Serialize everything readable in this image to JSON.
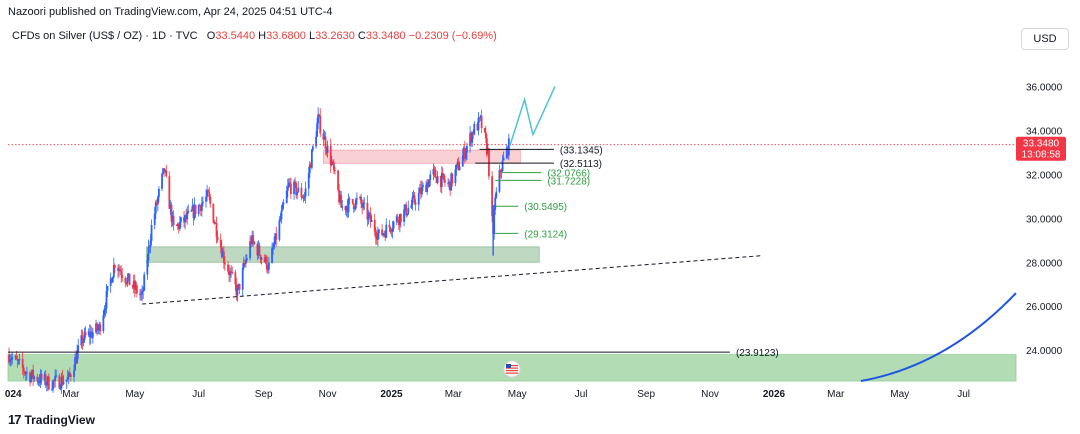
{
  "header": {
    "published": "Nazoori published on TradingView.com, Apr 24, 2025 04:51 UTC-4"
  },
  "symbol": {
    "name": "CFDs on Silver (US$ / OZ) · 1D · TVC",
    "o_label": "O",
    "o_value": "33.5440",
    "h_label": "H",
    "h_value": "33.6800",
    "l_label": "L",
    "l_value": "33.2630",
    "c_label": "C",
    "c_value": "33.3480",
    "change": "−0.2309 (−0.69%)"
  },
  "currency_button": "USD",
  "brand": {
    "logo": "17",
    "name": "TradingView"
  },
  "colors": {
    "up": "#2962ff",
    "down": "#f23645",
    "price_line": "#f23645",
    "green_zone": "#a5d6a7",
    "pink_zone": "#f8c8cc",
    "projection": "#4fc3d6",
    "curve": "#1e54e6",
    "label_green": "#2e9e43"
  },
  "chart_data": {
    "type": "candlestick",
    "y_axis": {
      "ticks": [
        "36.0000",
        "34.0000",
        "32.0000",
        "30.0000",
        "28.0000",
        "26.0000",
        "24.0000"
      ],
      "ylim": [
        22.6,
        37.2
      ]
    },
    "x_axis": {
      "ticks": [
        "024",
        "Mar",
        "May",
        "Jul",
        "Sep",
        "Nov",
        "2025",
        "Mar",
        "May",
        "Jul",
        "Sep",
        "Nov",
        "2026",
        "Mar",
        "May",
        "Jul"
      ],
      "xlim": [
        "2024-01-01",
        "2026-08-20"
      ]
    },
    "current_price": {
      "value": 33.348,
      "label": "33.3480",
      "countdown": "13:08:58"
    },
    "price_path": [
      [
        "2024-01-02",
        23.8
      ],
      [
        "2024-01-20",
        22.9
      ],
      [
        "2024-02-10",
        22.5
      ],
      [
        "2024-02-28",
        22.7
      ],
      [
        "2024-03-12",
        24.5
      ],
      [
        "2024-03-28",
        25.0
      ],
      [
        "2024-04-12",
        28.0
      ],
      [
        "2024-04-24",
        27.2
      ],
      [
        "2024-05-08",
        26.4
      ],
      [
        "2024-05-17",
        29.6
      ],
      [
        "2024-05-29",
        32.2
      ],
      [
        "2024-06-07",
        29.5
      ],
      [
        "2024-06-20",
        30.0
      ],
      [
        "2024-07-10",
        31.0
      ],
      [
        "2024-07-25",
        28.2
      ],
      [
        "2024-08-07",
        26.6
      ],
      [
        "2024-08-20",
        29.0
      ],
      [
        "2024-09-06",
        27.8
      ],
      [
        "2024-09-25",
        31.5
      ],
      [
        "2024-10-10",
        31.0
      ],
      [
        "2024-10-23",
        34.5
      ],
      [
        "2024-11-05",
        32.5
      ],
      [
        "2024-11-14",
        30.5
      ],
      [
        "2024-12-01",
        30.8
      ],
      [
        "2024-12-20",
        29.2
      ],
      [
        "2025-01-03",
        29.8
      ],
      [
        "2025-01-20",
        30.6
      ],
      [
        "2025-02-10",
        32.0
      ],
      [
        "2025-02-25",
        31.5
      ],
      [
        "2025-03-10",
        32.8
      ],
      [
        "2025-03-20",
        34.0
      ],
      [
        "2025-03-27",
        34.4
      ],
      [
        "2025-04-03",
        33.0
      ],
      [
        "2025-04-08",
        29.0
      ],
      [
        "2025-04-09",
        30.5
      ],
      [
        "2025-04-15",
        32.2
      ],
      [
        "2025-04-22",
        33.2
      ],
      [
        "2025-04-23",
        33.3
      ]
    ],
    "horizontal_levels": [
      {
        "value": 33.1345,
        "label": "(33.1345)",
        "color": "#131722"
      },
      {
        "value": 32.5113,
        "label": "(32.5113)",
        "color": "#131722"
      },
      {
        "value": 32.0766,
        "label": "(32.0766)",
        "color": "#2e9e43"
      },
      {
        "value": 31.7228,
        "label": "(31.7228)",
        "color": "#2e9e43"
      },
      {
        "value": 30.5495,
        "label": "(30.5495)",
        "color": "#2e9e43"
      },
      {
        "value": 29.3124,
        "label": "(29.3124)",
        "color": "#2e9e43"
      },
      {
        "value": 23.9123,
        "label": "(23.9123)",
        "color": "#131722"
      }
    ],
    "zones": [
      {
        "name": "pink-resistance",
        "x": [
          "2024-10-28",
          "2025-05-04"
        ],
        "y": [
          32.5,
          33.1
        ]
      },
      {
        "name": "green-support",
        "x": [
          "2024-05-12",
          "2025-05-22"
        ],
        "y": [
          28.0,
          28.7
        ]
      },
      {
        "name": "green-base",
        "x": [
          "2024-01-01",
          "2026-08-20"
        ],
        "y": [
          22.6,
          23.8
        ]
      }
    ],
    "trendline": {
      "from": [
        "2024-05-08",
        26.1
      ],
      "to": [
        "2025-12-20",
        28.3
      ]
    },
    "projection": [
      [
        "2025-04-24",
        33.3
      ],
      [
        "2025-05-08",
        35.4
      ],
      [
        "2025-05-16",
        33.8
      ],
      [
        "2025-06-06",
        36.0
      ]
    ],
    "curve": [
      [
        "2026-03-25",
        22.6
      ],
      [
        "2026-06-15",
        23.6
      ],
      [
        "2026-08-20",
        26.6
      ]
    ]
  }
}
